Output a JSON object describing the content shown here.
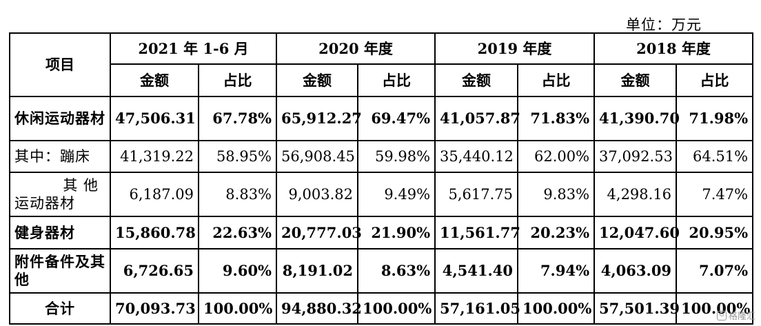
{
  "unit": "单位：万元",
  "header": {
    "item": "项目",
    "periods": [
      "2021 年 1-6 月",
      "2020 年度",
      "2019 年度",
      "2018 年度"
    ],
    "amount": "金额",
    "ratio": "占比"
  },
  "rows": [
    {
      "label": "休闲运动器材",
      "bold": true,
      "values": [
        "47,506.31",
        "67.78%",
        "65,912.27",
        "69.47%",
        "41,057.87",
        "71.83%",
        "41,390.70",
        "71.98%"
      ]
    },
    {
      "label": "其中：蹦床",
      "bold": false,
      "values": [
        "41,319.22",
        "58.95%",
        "56,908.45",
        "59.98%",
        "35,440.12",
        "62.00%",
        "37,092.53",
        "64.51%"
      ]
    },
    {
      "label_line1": "其 他",
      "label_line2": "运动器材",
      "bold": false,
      "values": [
        "6,187.09",
        "8.83%",
        "9,003.82",
        "9.49%",
        "5,617.75",
        "9.83%",
        "4,298.16",
        "7.47%"
      ]
    },
    {
      "label": "健身器材",
      "bold": true,
      "values": [
        "15,860.78",
        "22.63%",
        "20,777.03",
        "21.90%",
        "11,561.77",
        "20.23%",
        "12,047.60",
        "20.95%"
      ]
    },
    {
      "label": "附件备件及其他",
      "bold": true,
      "values": [
        "6,726.65",
        "9.60%",
        "8,191.02",
        "8.63%",
        "4,541.40",
        "7.94%",
        "4,063.09",
        "7.07%"
      ]
    },
    {
      "label": "合计",
      "bold": true,
      "values": [
        "70,093.73",
        "100.00%",
        "94,880.32",
        "100.00%",
        "57,161.05",
        "100.00%",
        "57,501.39",
        "100.00%"
      ]
    }
  ],
  "watermark": {
    "logo": "G",
    "text": "格隆汇"
  }
}
